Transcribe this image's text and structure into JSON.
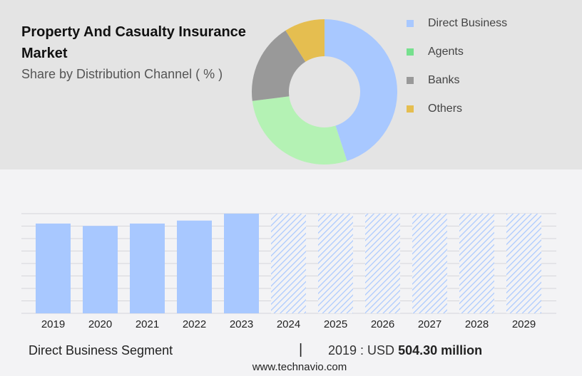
{
  "header": {
    "title": "Property And Casualty Insurance Market",
    "subtitle": "Share by Distribution Channel ( % )"
  },
  "footer": {
    "segment": "Direct Business Segment",
    "separator": "|",
    "year_label": "2019 : USD",
    "value_label": "504.30 million",
    "source": "www.technavio.com"
  },
  "chart_data": [
    {
      "type": "pie",
      "variant": "donut",
      "categories": [
        "Direct Business",
        "Agents",
        "Banks",
        "Others"
      ],
      "values": [
        45,
        28,
        18,
        9
      ],
      "colors": [
        "#a8c8ff",
        "#b4f2b4",
        "#999999",
        "#e5be50"
      ],
      "legend_colors": [
        "#a8c8ff",
        "#76e08e",
        "#999999",
        "#e5be50"
      ],
      "legend": "right"
    },
    {
      "type": "bar",
      "categories": [
        "2019",
        "2020",
        "2021",
        "2022",
        "2023",
        "2024",
        "2025",
        "2026",
        "2027",
        "2028",
        "2029"
      ],
      "values": [
        504.3,
        491,
        504.3,
        521,
        560,
        560,
        560,
        560,
        560,
        560,
        560
      ],
      "forecast_from": "2024",
      "ylim": [
        0,
        560
      ],
      "grid": true,
      "color": "#a8c8ff"
    }
  ]
}
